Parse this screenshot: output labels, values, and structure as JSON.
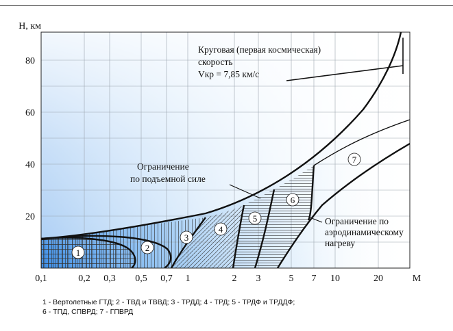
{
  "y_axis": {
    "label": "H, км",
    "ticks": [
      {
        "value": 20,
        "label": "20"
      },
      {
        "value": 40,
        "label": "40"
      },
      {
        "value": 60,
        "label": "60"
      },
      {
        "value": 80,
        "label": "80"
      }
    ]
  },
  "x_axis": {
    "unit_label": "M",
    "ticks": [
      {
        "value": 0.1,
        "label": "0,1"
      },
      {
        "value": 0.2,
        "label": "0,2"
      },
      {
        "value": 0.3,
        "label": "0,3"
      },
      {
        "value": 0.5,
        "label": "0,5"
      },
      {
        "value": 0.7,
        "label": "0,7"
      },
      {
        "value": 1,
        "label": "1"
      },
      {
        "value": 2,
        "label": "2"
      },
      {
        "value": 3,
        "label": "3"
      },
      {
        "value": 5,
        "label": "5"
      },
      {
        "value": 7,
        "label": "7"
      },
      {
        "value": 10,
        "label": "10"
      },
      {
        "value": 20,
        "label": "20"
      }
    ]
  },
  "annotations": {
    "orbital": [
      "Круговая (первая космическая)",
      "скорость",
      "Vкр = 7,85 км/с"
    ],
    "lift_limit": [
      "Ограничение",
      "по подъемной силе"
    ],
    "heating_limit": [
      "Ограничение по",
      "аэродинамическому",
      "нагреву"
    ]
  },
  "regions": [
    {
      "number": "1",
      "engine": "Вертолетные ГТД"
    },
    {
      "number": "2",
      "engine": "ТВД и ТВВД"
    },
    {
      "number": "3",
      "engine": "ТРДД"
    },
    {
      "number": "4",
      "engine": "ТРД"
    },
    {
      "number": "5",
      "engine": "ТРДФ и ТРДДФ"
    },
    {
      "number": "6",
      "engine": "ТПД, СПВРД"
    },
    {
      "number": "7",
      "engine": "ГПВРД"
    }
  ],
  "caption": {
    "line1": "1 - Вертолетные ГТД; 2 - ТВД и ТВВД; 3 - ТРДД; 4 - ТРД; 5 - ТРДФ и ТРДДФ;",
    "line2": "6 - ТПД, СПВРД; 7 - ГПВРД"
  },
  "colors": {
    "background_blue": "#3f8fe6",
    "background_light": "#ffffff",
    "line": "#111111",
    "hatch": "#333333"
  }
}
